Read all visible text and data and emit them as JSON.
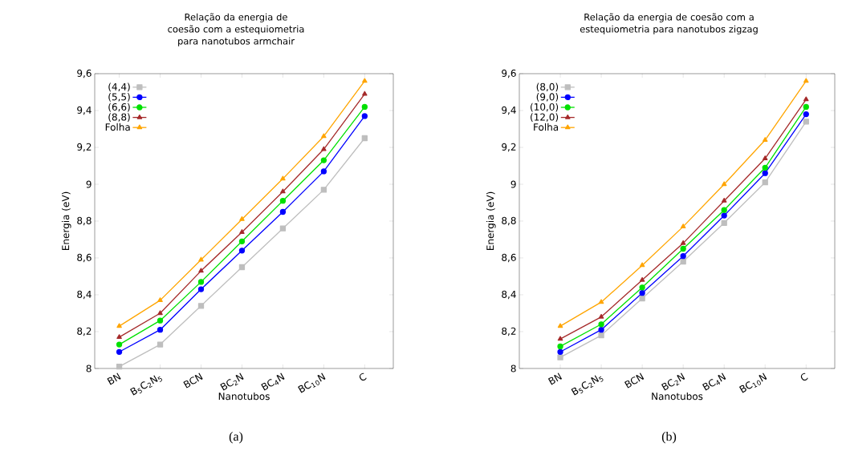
{
  "chart_data": [
    {
      "type": "line",
      "title": "Relação da energia de coesão com a estequiometria para nanotubos armchair",
      "xlabel": "Nanotubos",
      "ylabel": "Energia (eV)",
      "categories": [
        "BN",
        "B$_{5}$C$_{2}$N$_{5}$",
        "BCN",
        "BC$_{2}$N",
        "BC$_{4}$N",
        "BC$_{1}$$_{0}$N",
        "C"
      ],
      "ylim": [
        8,
        9.6
      ],
      "yticks": [
        8,
        {
          "value": 8.2,
          "label": "8,2"
        },
        {
          "value": 8.4,
          "label": "8,4"
        },
        {
          "value": 8.6,
          "label": "8,6"
        },
        {
          "value": 8.8,
          "label": "8,8"
        },
        9,
        {
          "value": 9.2,
          "label": "9,2"
        },
        {
          "value": 9.4,
          "label": "9,4"
        },
        {
          "value": 9.6,
          "label": "9,6"
        }
      ],
      "legend": "top left",
      "annotations": [
        "(a)"
      ],
      "series": [
        {
          "name": "(4,4)",
          "color": "#bebebe",
          "marker": "square",
          "values": [
            8.01,
            8.13,
            8.34,
            8.55,
            8.76,
            8.97,
            9.25
          ]
        },
        {
          "name": "(5,5)",
          "color": "#0000ff",
          "marker": "circle",
          "values": [
            8.09,
            8.21,
            8.43,
            8.64,
            8.85,
            9.07,
            9.37
          ]
        },
        {
          "name": "(6,6)",
          "color": "#00e000",
          "marker": "circle",
          "values": [
            8.13,
            8.26,
            8.47,
            8.69,
            8.91,
            9.13,
            9.42
          ]
        },
        {
          "name": "(8,8)",
          "color": "#a52a2a",
          "marker": "triangle",
          "values": [
            8.17,
            8.3,
            8.53,
            8.74,
            8.96,
            9.19,
            9.49
          ]
        },
        {
          "name": "Folha",
          "color": "#ffa500",
          "marker": "triangle",
          "values": [
            8.23,
            8.37,
            8.59,
            8.81,
            9.03,
            9.26,
            9.56
          ]
        }
      ]
    },
    {
      "type": "line",
      "title": "Relação da energia de coesão com a estequiometria para nanotubos zigzag",
      "xlabel": "Nanotubos",
      "ylabel": "Energia (eV)",
      "categories": [
        "BN",
        "B$_{5}$C$_{2}$N$_{5}$",
        "BCN",
        "BC$_{2}$N",
        "BC$_{4}$N",
        "BC$_{1}$$_{0}$N",
        "C"
      ],
      "ylim": [
        8,
        9.6
      ],
      "yticks": [
        8,
        {
          "value": 8.2,
          "label": "8,2"
        },
        {
          "value": 8.4,
          "label": "8,4"
        },
        {
          "value": 8.6,
          "label": "8,6"
        },
        {
          "value": 8.8,
          "label": "8,8"
        },
        9,
        {
          "value": 9.2,
          "label": "9,2"
        },
        {
          "value": 9.4,
          "label": "9,4"
        },
        {
          "value": 9.6,
          "label": "9,6"
        }
      ],
      "legend": "top left",
      "annotations": [
        "(b)"
      ],
      "series": [
        {
          "name": "(8,0)",
          "color": "#bebebe",
          "marker": "square",
          "values": [
            8.06,
            8.18,
            8.38,
            8.58,
            8.79,
            9.01,
            9.34
          ]
        },
        {
          "name": "(9,0)",
          "color": "#0000ff",
          "marker": "circle",
          "values": [
            8.09,
            8.21,
            8.41,
            8.61,
            8.83,
            9.06,
            9.38
          ]
        },
        {
          "name": "(10,0)",
          "color": "#00e000",
          "marker": "circle",
          "values": [
            8.12,
            8.24,
            8.44,
            8.65,
            8.86,
            9.09,
            9.42
          ]
        },
        {
          "name": "(12,0)",
          "color": "#a52a2a",
          "marker": "triangle",
          "values": [
            8.16,
            8.28,
            8.48,
            8.68,
            8.91,
            9.14,
            9.46
          ]
        },
        {
          "name": "Folha",
          "color": "#ffa500",
          "marker": "triangle",
          "values": [
            8.23,
            8.36,
            8.56,
            8.77,
            9.0,
            9.24,
            9.56
          ]
        }
      ]
    }
  ]
}
